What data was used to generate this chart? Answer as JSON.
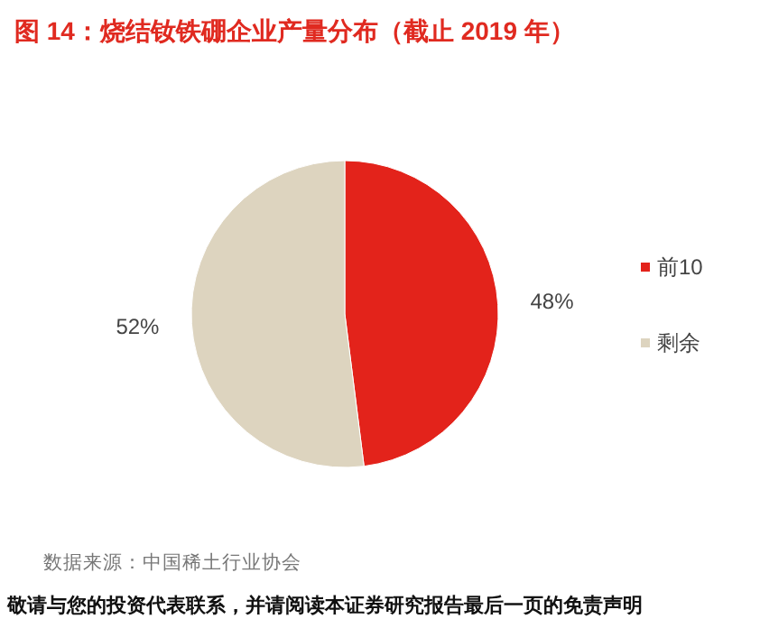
{
  "chart_data": {
    "type": "pie",
    "title": "图 14：烧结钕铁硼企业产量分布（截止 2019 年）",
    "categories": [
      "前10",
      "剩余"
    ],
    "values": [
      48,
      52
    ],
    "value_labels": [
      "48%",
      "52%"
    ],
    "colors": [
      "#e3231b",
      "#ddd4bf"
    ],
    "legend": "right",
    "annotations": [
      "数据来源：中国稀土行业协会",
      "敬请与您的投资代表联系，并请阅读本证券研究报告最后一页的免责声明"
    ]
  }
}
